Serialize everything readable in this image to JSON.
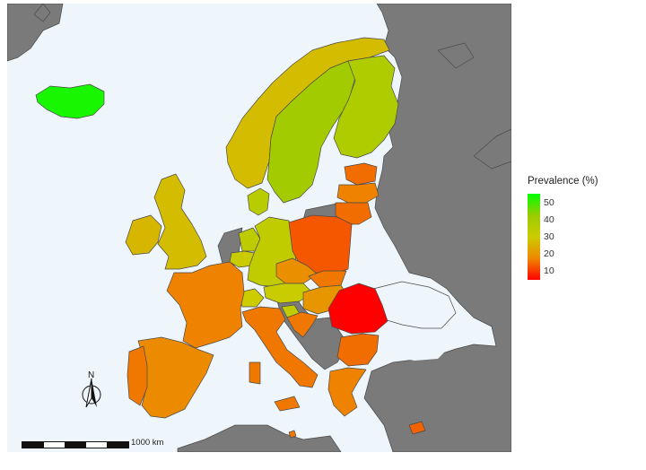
{
  "legend": {
    "title": "Prevalence (%)",
    "ticks": [
      "50",
      "40",
      "30",
      "20",
      "10"
    ],
    "tick_values": [
      50,
      40,
      30,
      20,
      10
    ],
    "range": [
      5,
      55
    ],
    "colors": {
      "high": "#00ff00",
      "mid": "#cccc00",
      "low": "#ff0000",
      "no_data": "#7a7a7a",
      "sea": "#eef6fc"
    }
  },
  "north_arrow": {
    "label": "N"
  },
  "scale_bar": {
    "label": "1000 km"
  },
  "map_data": {
    "variable": "Prevalence (%)",
    "regions": [
      {
        "name": "Iceland",
        "value": 53
      },
      {
        "name": "Sweden",
        "value": 40
      },
      {
        "name": "Finland",
        "value": 37
      },
      {
        "name": "Norway",
        "value": 27
      },
      {
        "name": "Denmark",
        "value": 35
      },
      {
        "name": "United Kingdom",
        "value": 27
      },
      {
        "name": "Ireland",
        "value": 26
      },
      {
        "name": "Germany",
        "value": 33
      },
      {
        "name": "Netherlands",
        "value": 34
      },
      {
        "name": "Belgium",
        "value": 31
      },
      {
        "name": "Switzerland",
        "value": 30
      },
      {
        "name": "Austria",
        "value": 31
      },
      {
        "name": "Slovenia",
        "value": 33
      },
      {
        "name": "France",
        "value": 17
      },
      {
        "name": "Spain",
        "value": 18
      },
      {
        "name": "Portugal",
        "value": 16
      },
      {
        "name": "Italy",
        "value": 16
      },
      {
        "name": "Poland",
        "value": 13
      },
      {
        "name": "Czech Republic",
        "value": 19
      },
      {
        "name": "Slovakia",
        "value": 16
      },
      {
        "name": "Hungary",
        "value": 20
      },
      {
        "name": "Croatia",
        "value": 16
      },
      {
        "name": "Romania",
        "value": 5
      },
      {
        "name": "Bulgaria",
        "value": 15
      },
      {
        "name": "Greece",
        "value": 17
      },
      {
        "name": "Estonia",
        "value": 15
      },
      {
        "name": "Latvia",
        "value": 17
      },
      {
        "name": "Lithuania",
        "value": 15
      },
      {
        "name": "Cyprus",
        "value": 14
      },
      {
        "name": "Malta",
        "value": 16
      }
    ]
  }
}
